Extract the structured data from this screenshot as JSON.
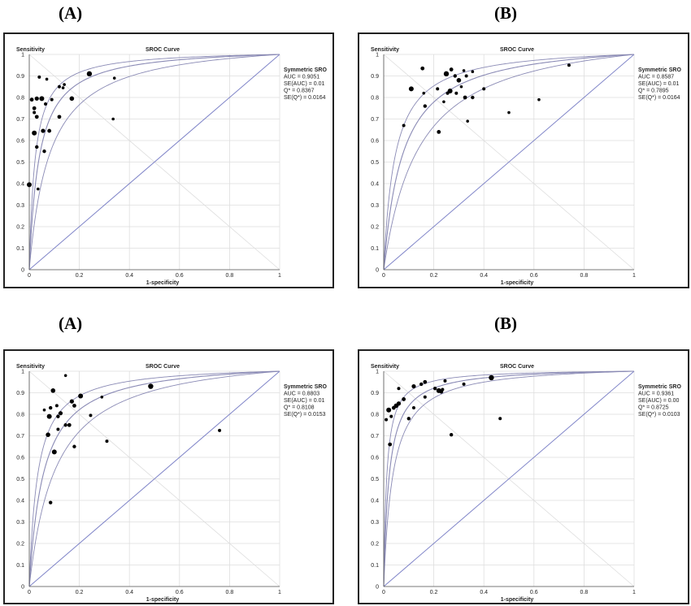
{
  "colors": {
    "curve": "#8a8ab5",
    "diagonal": "#7f84c8",
    "grid": "#dedede",
    "point": "#000000",
    "frame": "#222222"
  },
  "chart_data": [
    {
      "panel_label": "(A)",
      "type": "scatter",
      "title": "SROC Curve",
      "xlabel": "1-specificity",
      "ylabel": "Sensitivity",
      "xticks": [
        "0",
        "0.2",
        "0.4",
        "0.6",
        "0.8",
        "1"
      ],
      "yticks": [
        "0",
        "0.1",
        "0.2",
        "0.3",
        "0.4",
        "0.5",
        "0.6",
        "0.7",
        "0.8",
        "0.9",
        "1"
      ],
      "xlim": [
        0,
        1
      ],
      "ylim": [
        0,
        1
      ],
      "grid": true,
      "stats_lines": [
        "Symmetric SRO",
        "AUC = 0.9051",
        "SE(AUC) = 0.01",
        "Q* = 0.8367",
        "SE(Q*) = 0.0164"
      ],
      "curve_q": [
        0.7836,
        0.8367,
        0.8688
      ],
      "points": [
        [
          0.24,
          0.91,
          3.2
        ],
        [
          0.34,
          0.89,
          1.8
        ],
        [
          0.04,
          0.895,
          2.0
        ],
        [
          0.07,
          0.885,
          1.8
        ],
        [
          0.01,
          0.79,
          2.4
        ],
        [
          0.03,
          0.795,
          2.6
        ],
        [
          0.05,
          0.795,
          3.0
        ],
        [
          0.02,
          0.75,
          2.4
        ],
        [
          0.065,
          0.77,
          2.0
        ],
        [
          0.09,
          0.79,
          2.0
        ],
        [
          0.12,
          0.85,
          2.0
        ],
        [
          0.135,
          0.845,
          1.8
        ],
        [
          0.14,
          0.86,
          1.8
        ],
        [
          0.17,
          0.795,
          2.8
        ],
        [
          0.12,
          0.71,
          2.4
        ],
        [
          0.08,
          0.645,
          2.4
        ],
        [
          0.055,
          0.645,
          2.6
        ],
        [
          0.02,
          0.635,
          3.0
        ],
        [
          0.02,
          0.73,
          2.0
        ],
        [
          0.03,
          0.71,
          2.4
        ],
        [
          0.06,
          0.55,
          2.2
        ],
        [
          0.03,
          0.57,
          2.2
        ],
        [
          0.035,
          0.375,
          1.8
        ],
        [
          0.0,
          0.395,
          3.0
        ],
        [
          0.335,
          0.7,
          1.8
        ]
      ]
    },
    {
      "panel_label": "(B)",
      "type": "scatter",
      "title": "SROC Curve",
      "xlabel": "1-specificity",
      "ylabel": "Sensitivity",
      "xticks": [
        "0",
        "0.2",
        "0.4",
        "0.6",
        "0.8",
        "1"
      ],
      "yticks": [
        "0",
        "0.1",
        "0.2",
        "0.3",
        "0.4",
        "0.5",
        "0.6",
        "0.7",
        "0.8",
        "0.9",
        "1"
      ],
      "xlim": [
        0,
        1
      ],
      "ylim": [
        0,
        1
      ],
      "grid": true,
      "stats_lines": [
        "Symmetric SRO",
        "AUC = 0.8587",
        "SE(AUC) = 0.01",
        "Q* = 0.7895",
        "SE(Q*) = 0.0164"
      ],
      "curve_q": [
        0.7385,
        0.7895,
        0.8285
      ],
      "points": [
        [
          0.155,
          0.935,
          2.4
        ],
        [
          0.11,
          0.84,
          3.0
        ],
        [
          0.16,
          0.82,
          1.8
        ],
        [
          0.165,
          0.76,
          2.2
        ],
        [
          0.08,
          0.67,
          2.0
        ],
        [
          0.215,
          0.84,
          2.0
        ],
        [
          0.22,
          0.64,
          2.4
        ],
        [
          0.25,
          0.91,
          3.2
        ],
        [
          0.27,
          0.93,
          2.4
        ],
        [
          0.285,
          0.9,
          2.2
        ],
        [
          0.3,
          0.88,
          2.8
        ],
        [
          0.32,
          0.925,
          1.8
        ],
        [
          0.33,
          0.9,
          2.0
        ],
        [
          0.355,
          0.92,
          1.8
        ],
        [
          0.31,
          0.85,
          1.8
        ],
        [
          0.265,
          0.83,
          3.0
        ],
        [
          0.255,
          0.82,
          2.0
        ],
        [
          0.24,
          0.78,
          1.8
        ],
        [
          0.29,
          0.82,
          2.0
        ],
        [
          0.325,
          0.8,
          2.4
        ],
        [
          0.355,
          0.8,
          2.2
        ],
        [
          0.4,
          0.84,
          2.0
        ],
        [
          0.335,
          0.69,
          1.8
        ],
        [
          0.5,
          0.73,
          1.8
        ],
        [
          0.62,
          0.79,
          1.8
        ],
        [
          0.74,
          0.95,
          2.0
        ]
      ]
    },
    {
      "panel_label": "(A)",
      "type": "scatter",
      "title": "SROC Curve",
      "xlabel": "1-specificity",
      "ylabel": "Sensitivity",
      "xticks": [
        "0",
        "0.2",
        "0.4",
        "0.6",
        "0.8",
        "1"
      ],
      "yticks": [
        "0",
        "0.1",
        "0.2",
        "0.3",
        "0.4",
        "0.5",
        "0.6",
        "0.7",
        "0.8",
        "0.9",
        "1"
      ],
      "xlim": [
        0,
        1
      ],
      "ylim": [
        0,
        1
      ],
      "grid": true,
      "stats_lines": [
        "Symmetric SRO",
        "AUC = 0.8803",
        "SE(AUC) = 0.01",
        "Q* = 0.8108",
        "SE(Q*) = 0.0153"
      ],
      "curve_q": [
        0.7624,
        0.8108,
        0.8475
      ],
      "points": [
        [
          0.145,
          0.98,
          1.8
        ],
        [
          0.095,
          0.91,
          2.8
        ],
        [
          0.205,
          0.885,
          3.0
        ],
        [
          0.485,
          0.93,
          3.2
        ],
        [
          0.29,
          0.88,
          1.8
        ],
        [
          0.17,
          0.86,
          2.6
        ],
        [
          0.18,
          0.84,
          2.4
        ],
        [
          0.06,
          0.82,
          1.8
        ],
        [
          0.085,
          0.83,
          2.2
        ],
        [
          0.11,
          0.84,
          2.0
        ],
        [
          0.08,
          0.79,
          3.0
        ],
        [
          0.125,
          0.805,
          2.6
        ],
        [
          0.115,
          0.79,
          2.2
        ],
        [
          0.16,
          0.75,
          2.4
        ],
        [
          0.145,
          0.75,
          2.2
        ],
        [
          0.245,
          0.795,
          2.0
        ],
        [
          0.115,
          0.73,
          2.0
        ],
        [
          0.075,
          0.705,
          2.8
        ],
        [
          0.1,
          0.625,
          3.0
        ],
        [
          0.18,
          0.65,
          2.2
        ],
        [
          0.31,
          0.675,
          2.0
        ],
        [
          0.76,
          0.725,
          2.0
        ],
        [
          0.085,
          0.39,
          2.2
        ]
      ]
    },
    {
      "panel_label": "(B)",
      "type": "scatter",
      "title": "SROC Curve",
      "xlabel": "1-specificity",
      "ylabel": "Sensitivity",
      "xticks": [
        "0",
        "0.2",
        "0.4",
        "0.6",
        "0.8",
        "1"
      ],
      "yticks": [
        "0",
        "0.1",
        "0.2",
        "0.3",
        "0.4",
        "0.5",
        "0.6",
        "0.7",
        "0.8",
        "0.9",
        "1"
      ],
      "xlim": [
        0,
        1
      ],
      "ylim": [
        0,
        1
      ],
      "grid": true,
      "stats_lines": [
        "Symmetric SRO",
        "AUC = 0.9361",
        "SE(AUC) = 0.00",
        "Q* = 0.8725",
        "SE(Q*) = 0.0103"
      ],
      "curve_q": [
        0.8415,
        0.8725,
        0.9015
      ],
      "points": [
        [
          0.43,
          0.97,
          3.2
        ],
        [
          0.165,
          0.95,
          2.4
        ],
        [
          0.15,
          0.94,
          2.2
        ],
        [
          0.12,
          0.93,
          2.6
        ],
        [
          0.06,
          0.92,
          2.0
        ],
        [
          0.205,
          0.92,
          2.2
        ],
        [
          0.22,
          0.91,
          3.0
        ],
        [
          0.23,
          0.905,
          2.4
        ],
        [
          0.235,
          0.915,
          2.0
        ],
        [
          0.245,
          0.955,
          2.0
        ],
        [
          0.32,
          0.94,
          2.0
        ],
        [
          0.08,
          0.87,
          2.4
        ],
        [
          0.06,
          0.85,
          2.6
        ],
        [
          0.05,
          0.84,
          2.8
        ],
        [
          0.04,
          0.83,
          2.4
        ],
        [
          0.02,
          0.82,
          3.0
        ],
        [
          0.03,
          0.79,
          2.0
        ],
        [
          0.01,
          0.775,
          2.0
        ],
        [
          0.1,
          0.78,
          2.2
        ],
        [
          0.12,
          0.83,
          2.0
        ],
        [
          0.165,
          0.88,
          2.0
        ],
        [
          0.025,
          0.66,
          2.4
        ],
        [
          0.27,
          0.705,
          2.2
        ],
        [
          0.465,
          0.78,
          2.0
        ]
      ]
    }
  ]
}
